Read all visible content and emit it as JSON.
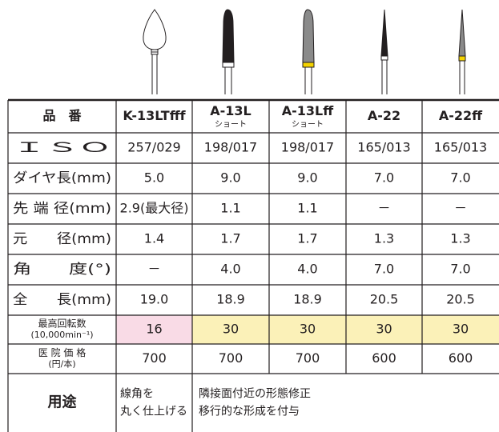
{
  "table": {
    "header_label": "品　番",
    "columns": [
      {
        "name": "K-13LTfff"
      },
      {
        "name": "A-13L",
        "sub": "ショート"
      },
      {
        "name": "A-13Lff",
        "sub": "ショート"
      },
      {
        "name": "A-22"
      },
      {
        "name": "A-22ff"
      }
    ],
    "rows": [
      {
        "label": "ＩＳＯ",
        "cells": [
          "257/029",
          "198/017",
          "198/017",
          "165/013",
          "165/013"
        ]
      },
      {
        "label": "ダイヤ長(mm)",
        "cells": [
          "5.0",
          "9.0",
          "9.0",
          "7.0",
          "7.0"
        ]
      },
      {
        "label": "先 端 径(mm)",
        "cells": [
          "2.9(最大径)",
          "1.1",
          "1.1",
          "－",
          "－"
        ]
      },
      {
        "label": "元　　径(mm)",
        "cells": [
          "1.4",
          "1.7",
          "1.7",
          "1.3",
          "1.3"
        ]
      },
      {
        "label": "角　　度(°)",
        "cells": [
          "－",
          "4.0",
          "4.0",
          "7.0",
          "7.0"
        ]
      },
      {
        "label": "全　　長(mm)",
        "cells": [
          "19.0",
          "18.9",
          "18.9",
          "20.5",
          "20.5"
        ]
      },
      {
        "label": "最高回転数",
        "sub": "(10,000min⁻¹)",
        "cells": [
          "16",
          "30",
          "30",
          "30",
          "30"
        ],
        "colors": [
          "#f9dbe6",
          "#fbf1b8",
          "#fbf1b8",
          "#fbf1b8",
          "#fbf1b8"
        ]
      },
      {
        "label": "医 院 価 格",
        "sub": "(円/本)",
        "cells": [
          "700",
          "700",
          "700",
          "600",
          "600"
        ]
      }
    ],
    "use": {
      "label": "用途",
      "first": [
        "線角を",
        "丸く仕上げる"
      ],
      "rest": [
        "隣接面付近の形態修正",
        "移行的な形成を付与"
      ]
    }
  }
}
